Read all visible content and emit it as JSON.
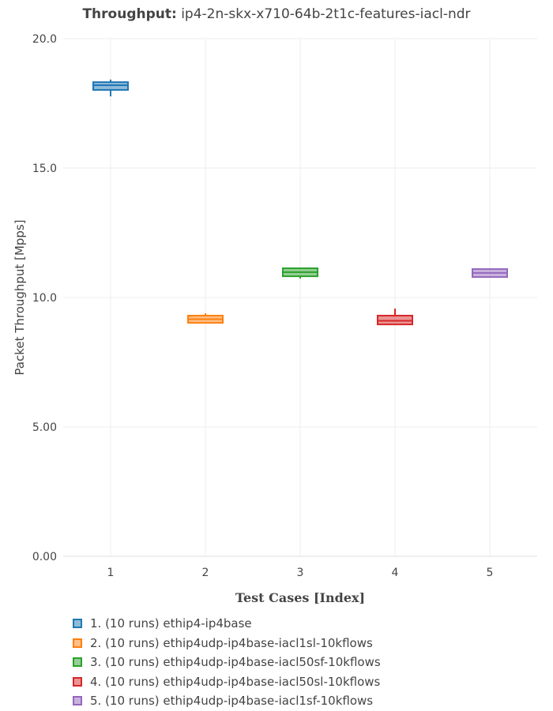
{
  "chart_data": {
    "type": "box",
    "title_bold": "Throughput:",
    "title": "ip4-2n-skx-x710-64b-2t1c-features-iacl-ndr",
    "xlabel": "Test Cases [Index]",
    "ylabel": "Packet Throughput [Mpps]",
    "ylim": [
      0,
      20
    ],
    "yticks": [
      "0.00",
      "5.00",
      "10.0",
      "15.0",
      "20.0"
    ],
    "ytick_values": [
      0,
      5,
      10,
      15,
      20
    ],
    "categories": [
      "1",
      "2",
      "3",
      "4",
      "5"
    ],
    "grid": true,
    "legend_position": "bottom",
    "series": [
      {
        "name": "1. (10 runs) ethip4-ip4base",
        "color": "#1f77b4",
        "min": 17.77,
        "q1": 18.02,
        "median": 18.2,
        "q3": 18.32,
        "max": 18.42
      },
      {
        "name": "2. (10 runs) ethip4udp-ip4base-iacl1sl-10kflows",
        "color": "#ff7f0e",
        "min": 9.02,
        "q1": 9.02,
        "median": 9.16,
        "q3": 9.3,
        "max": 9.39
      },
      {
        "name": "3. (10 runs) ethip4udp-ip4base-iacl50sf-10kflows",
        "color": "#2ca02c",
        "min": 10.73,
        "q1": 10.82,
        "median": 10.98,
        "q3": 11.13,
        "max": 11.13
      },
      {
        "name": "4. (10 runs) ethip4udp-ip4base-iacl50sl-10kflows",
        "color": "#d62728",
        "min": 8.96,
        "q1": 8.96,
        "median": 9.1,
        "q3": 9.3,
        "max": 9.57
      },
      {
        "name": "5. (10 runs) ethip4udp-ip4base-iacl1sf-10kflows",
        "color": "#9467bd",
        "min": 10.79,
        "q1": 10.79,
        "median": 10.95,
        "q3": 11.1,
        "max": 11.13
      }
    ]
  }
}
